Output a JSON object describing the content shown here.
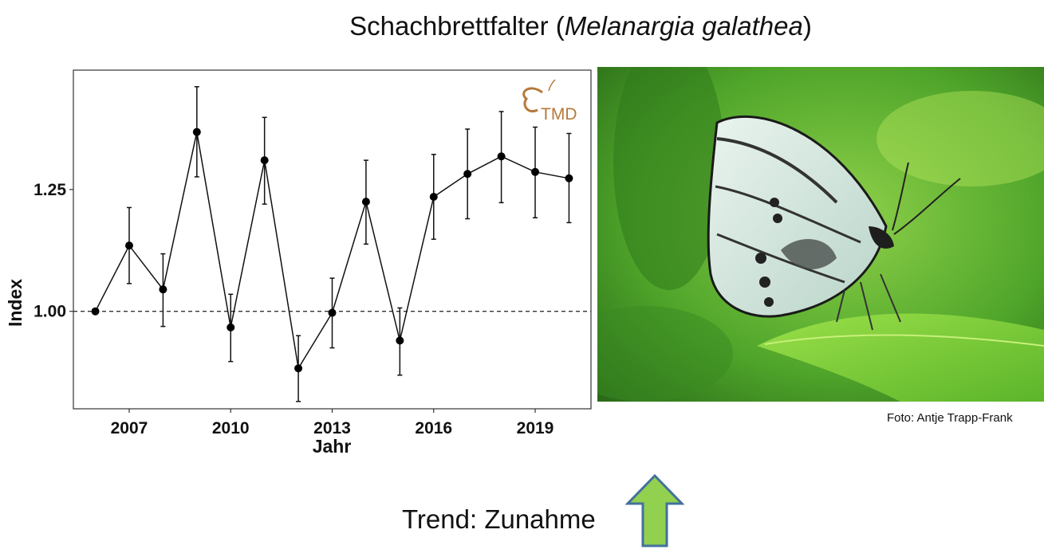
{
  "header": {
    "title_prefix": "Schachbrettfalter (",
    "title_species": "Melanargia galathea",
    "title_suffix": ")"
  },
  "logo": {
    "text": "TMD"
  },
  "photo": {
    "credit": "Foto: Antje Trapp-Frank"
  },
  "trend": {
    "label": "Trend: Zunahme",
    "direction": "up",
    "arrow_color": "#92d050",
    "arrow_border": "#41719c"
  },
  "chart_data": {
    "type": "line",
    "xlabel": "Jahr",
    "ylabel": "Index",
    "x_ticks": [
      2007,
      2010,
      2013,
      2016,
      2019
    ],
    "y_ticks": [
      1.0,
      1.25
    ],
    "y_tick_labels": [
      "1.00",
      "1.25"
    ],
    "xlim": [
      2005.35,
      2020.65
    ],
    "ylim": [
      0.8,
      1.495
    ],
    "reference_line": {
      "y": 1.0,
      "style": "dashed"
    },
    "grid": false,
    "series": [
      {
        "x": [
          2006,
          2007,
          2008,
          2009,
          2010,
          2011,
          2012,
          2013,
          2014,
          2015,
          2016,
          2017,
          2018,
          2019,
          2020
        ],
        "y": [
          1.0,
          1.135,
          1.045,
          1.368,
          0.967,
          1.31,
          0.883,
          0.997,
          1.225,
          0.94,
          1.235,
          1.282,
          1.318,
          1.286,
          1.273
        ],
        "lower": [
          1.0,
          1.057,
          0.969,
          1.276,
          0.897,
          1.22,
          0.815,
          0.925,
          1.138,
          0.869,
          1.148,
          1.19,
          1.223,
          1.192,
          1.182
        ],
        "upper": [
          1.0,
          1.213,
          1.118,
          1.461,
          1.035,
          1.398,
          0.95,
          1.068,
          1.31,
          1.007,
          1.322,
          1.374,
          1.41,
          1.378,
          1.365
        ]
      }
    ]
  }
}
